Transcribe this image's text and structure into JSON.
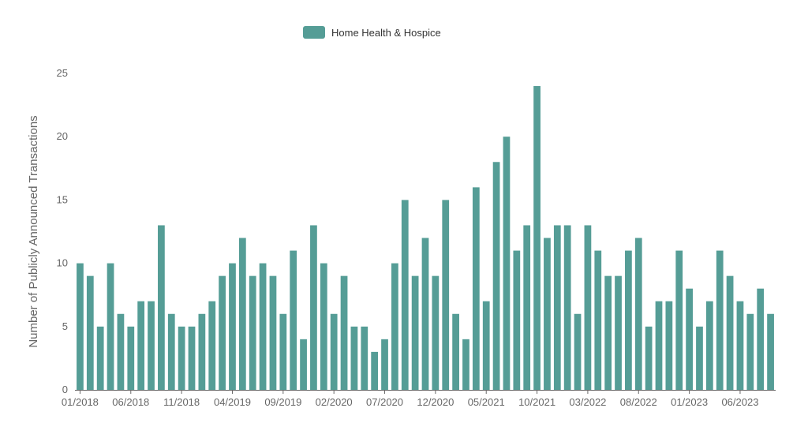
{
  "chart_data": {
    "type": "bar",
    "legend": {
      "position": "top-center"
    },
    "series": [
      {
        "name": "Home Health & Hospice",
        "color": "#559d96",
        "values": [
          10,
          9,
          5,
          10,
          6,
          5,
          7,
          7,
          13,
          6,
          5,
          5,
          6,
          7,
          9,
          10,
          12,
          9,
          10,
          9,
          6,
          11,
          4,
          13,
          10,
          6,
          9,
          5,
          5,
          3,
          4,
          10,
          15,
          9,
          12,
          9,
          15,
          6,
          4,
          16,
          7,
          18,
          20,
          11,
          13,
          24,
          12,
          13,
          13,
          6,
          13,
          11,
          9,
          9,
          11,
          12,
          5,
          7,
          7,
          11,
          8,
          5,
          7,
          11,
          9,
          7,
          6,
          8,
          6
        ]
      }
    ],
    "ylabel": "Number of Publicly Announced Transactions",
    "ylim": [
      0,
      25
    ],
    "yticks": [
      0,
      5,
      10,
      15,
      20,
      25
    ],
    "xticks": [
      "01/2018",
      "06/2018",
      "11/2018",
      "04/2019",
      "09/2019",
      "02/2020",
      "07/2020",
      "12/2020",
      "05/2021",
      "10/2021",
      "03/2022",
      "08/2022",
      "01/2023",
      "06/2023"
    ],
    "xtick_every": 5,
    "grid": false
  }
}
